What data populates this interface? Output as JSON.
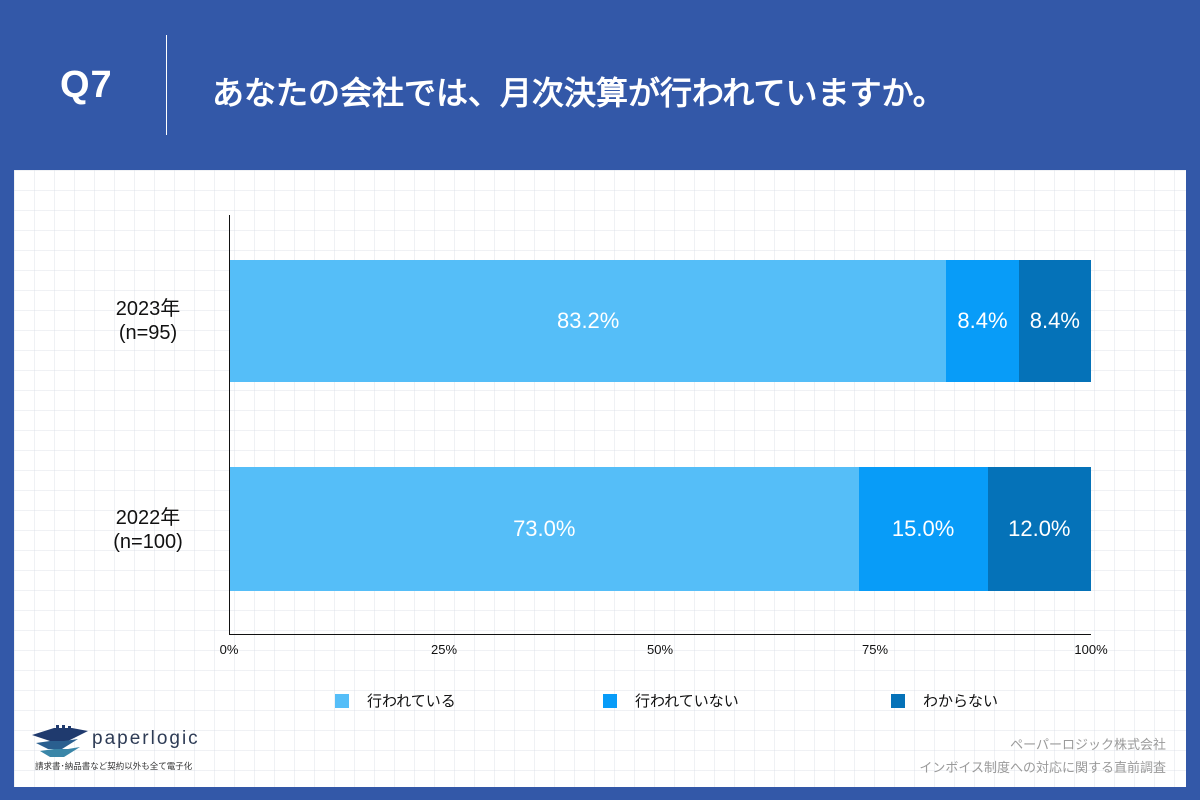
{
  "header": {
    "question_number": "Q7",
    "question_text": "あなたの会社では、月次決算が行われていますか。"
  },
  "colors": {
    "background": "#3358a8",
    "panel": "#ffffff",
    "series_done": "#55bef8",
    "series_not_done": "#089cf8",
    "series_unknown": "#0572b8"
  },
  "chart_data": {
    "type": "bar",
    "orientation": "horizontal",
    "stacked": true,
    "normalized_percent": true,
    "title": "あなたの会社では、月次決算が行われていますか。",
    "categories": [
      "2023年\n(n=95)",
      "2022年\n(n=100)"
    ],
    "category_labels": [
      {
        "line1": "2023年",
        "line2": "(n=95)"
      },
      {
        "line1": "2022年",
        "line2": "(n=100)"
      }
    ],
    "series": [
      {
        "name": "行われている",
        "color": "#55bef8",
        "values": [
          83.2,
          73.0
        ],
        "labels": [
          "83.2%",
          "73.0%"
        ]
      },
      {
        "name": "行われていない",
        "color": "#089cf8",
        "values": [
          8.4,
          15.0
        ],
        "labels": [
          "8.4%",
          "15.0%"
        ]
      },
      {
        "name": "わからない",
        "color": "#0572b8",
        "values": [
          8.4,
          12.0
        ],
        "labels": [
          "8.4%",
          "12.0%"
        ]
      }
    ],
    "xlabel": "",
    "ylabel": "",
    "xlim": [
      0,
      100
    ],
    "x_ticks": [
      "0%",
      "25%",
      "50%",
      "75%",
      "100%"
    ],
    "legend_position": "bottom",
    "grid": false
  },
  "legend": {
    "items": [
      {
        "label": "行われている",
        "color": "#55bef8"
      },
      {
        "label": "行われていない",
        "color": "#089cf8"
      },
      {
        "label": "わからない",
        "color": "#0572b8"
      }
    ]
  },
  "logo": {
    "name": "paperlogic",
    "tagline": "請求書･納品書など契約以外も全て電子化"
  },
  "footer": {
    "company": "ペーパーロジック株式会社",
    "survey": "インボイス制度への対応に関する直前調査"
  }
}
